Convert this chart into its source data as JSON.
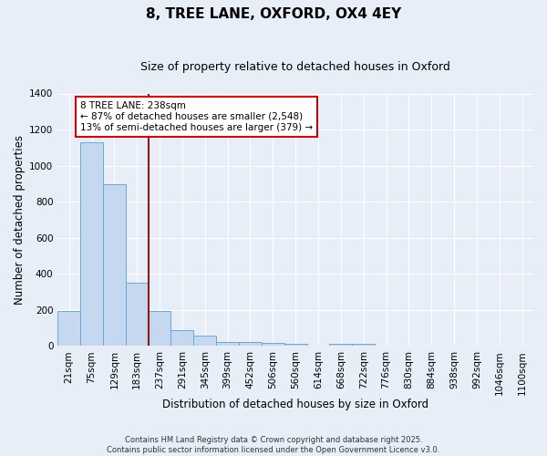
{
  "title1": "8, TREE LANE, OXFORD, OX4 4EY",
  "title2": "Size of property relative to detached houses in Oxford",
  "xlabel": "Distribution of detached houses by size in Oxford",
  "ylabel": "Number of detached properties",
  "categories": [
    "21sqm",
    "75sqm",
    "129sqm",
    "183sqm",
    "237sqm",
    "291sqm",
    "345sqm",
    "399sqm",
    "452sqm",
    "506sqm",
    "560sqm",
    "614sqm",
    "668sqm",
    "722sqm",
    "776sqm",
    "830sqm",
    "884sqm",
    "938sqm",
    "992sqm",
    "1046sqm",
    "1100sqm"
  ],
  "values": [
    195,
    1130,
    895,
    350,
    195,
    90,
    58,
    20,
    20,
    15,
    13,
    0,
    10,
    10,
    0,
    0,
    0,
    0,
    0,
    0,
    0
  ],
  "bar_color": "#c5d8f0",
  "bar_edge_color": "#6aaad4",
  "background_color": "#e8eef8",
  "grid_color": "#ffffff",
  "property_line_index": 3,
  "annotation_text": "8 TREE LANE: 238sqm\n← 87% of detached houses are smaller (2,548)\n13% of semi-detached houses are larger (379) →",
  "annotation_box_color": "#ffffff",
  "annotation_box_edge_color": "#cc0000",
  "ylim": [
    0,
    1400
  ],
  "yticks": [
    0,
    200,
    400,
    600,
    800,
    1000,
    1200,
    1400
  ],
  "footer": "Contains HM Land Registry data © Crown copyright and database right 2025.\nContains public sector information licensed under the Open Government Licence v3.0.",
  "title1_fontsize": 11,
  "title2_fontsize": 9,
  "xlabel_fontsize": 8.5,
  "ylabel_fontsize": 8.5,
  "tick_fontsize": 7.5,
  "annotation_fontsize": 7.5,
  "footer_fontsize": 6
}
